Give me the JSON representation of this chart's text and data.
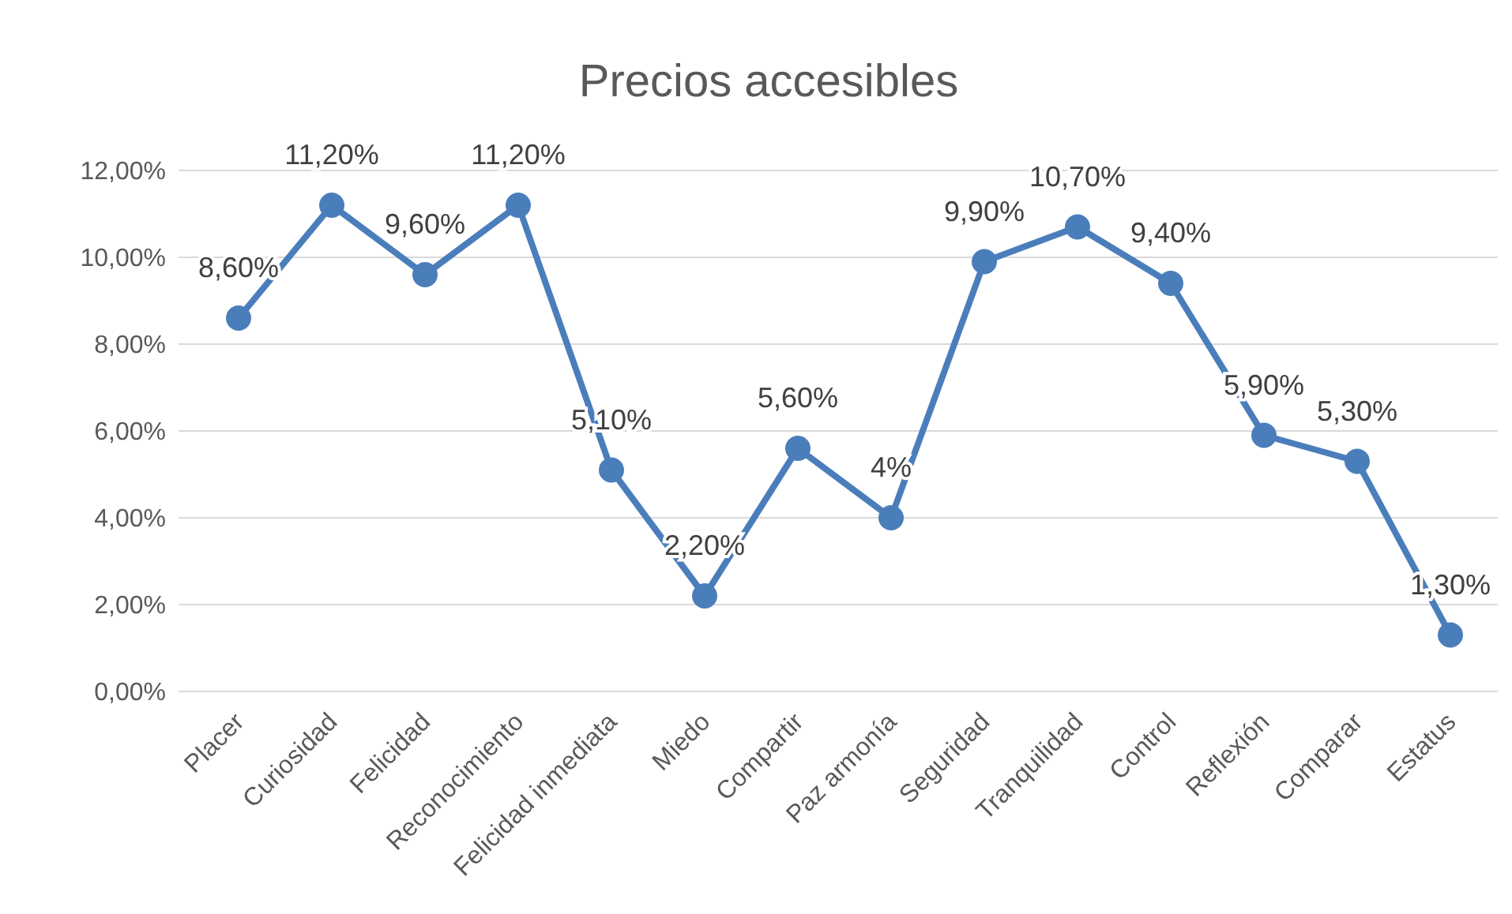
{
  "chart_data": {
    "type": "line",
    "title": "Precios accesibles",
    "categories": [
      "Placer",
      "Curiosidad",
      "Felicidad",
      "Reconocimiento",
      "Felicidad inmediata",
      "Miedo",
      "Compartir",
      "Paz armonía",
      "Seguridad",
      "Tranquilidad",
      "Control",
      "Reflexión",
      "Comparar",
      "Estatus"
    ],
    "series": [
      {
        "color": "#4a7ebb",
        "values": [
          8.6,
          11.2,
          9.6,
          11.2,
          5.1,
          2.2,
          5.6,
          4,
          9.9,
          10.7,
          9.4,
          5.9,
          5.3,
          1.3
        ],
        "value_labels": [
          "8,60%",
          "11,20%",
          "9,60%",
          "11,20%",
          "5,10%",
          "2,20%",
          "5,60%",
          "4%",
          "9,90%",
          "10,70%",
          "9,40%",
          "5,90%",
          "5,30%",
          "1,30%"
        ]
      }
    ],
    "ylim": [
      0,
      12
    ],
    "yticks": [
      {
        "value": 0,
        "label": "0,00%"
      },
      {
        "value": 2,
        "label": "2,00%"
      },
      {
        "value": 4,
        "label": "4,00%"
      },
      {
        "value": 6,
        "label": "6,00%"
      },
      {
        "value": 8,
        "label": "8,00%"
      },
      {
        "value": 10,
        "label": "10,00%"
      },
      {
        "value": 12,
        "label": "12,00%"
      }
    ],
    "grid": "y",
    "legend": false,
    "marker": "circle",
    "line_style": "solid"
  }
}
